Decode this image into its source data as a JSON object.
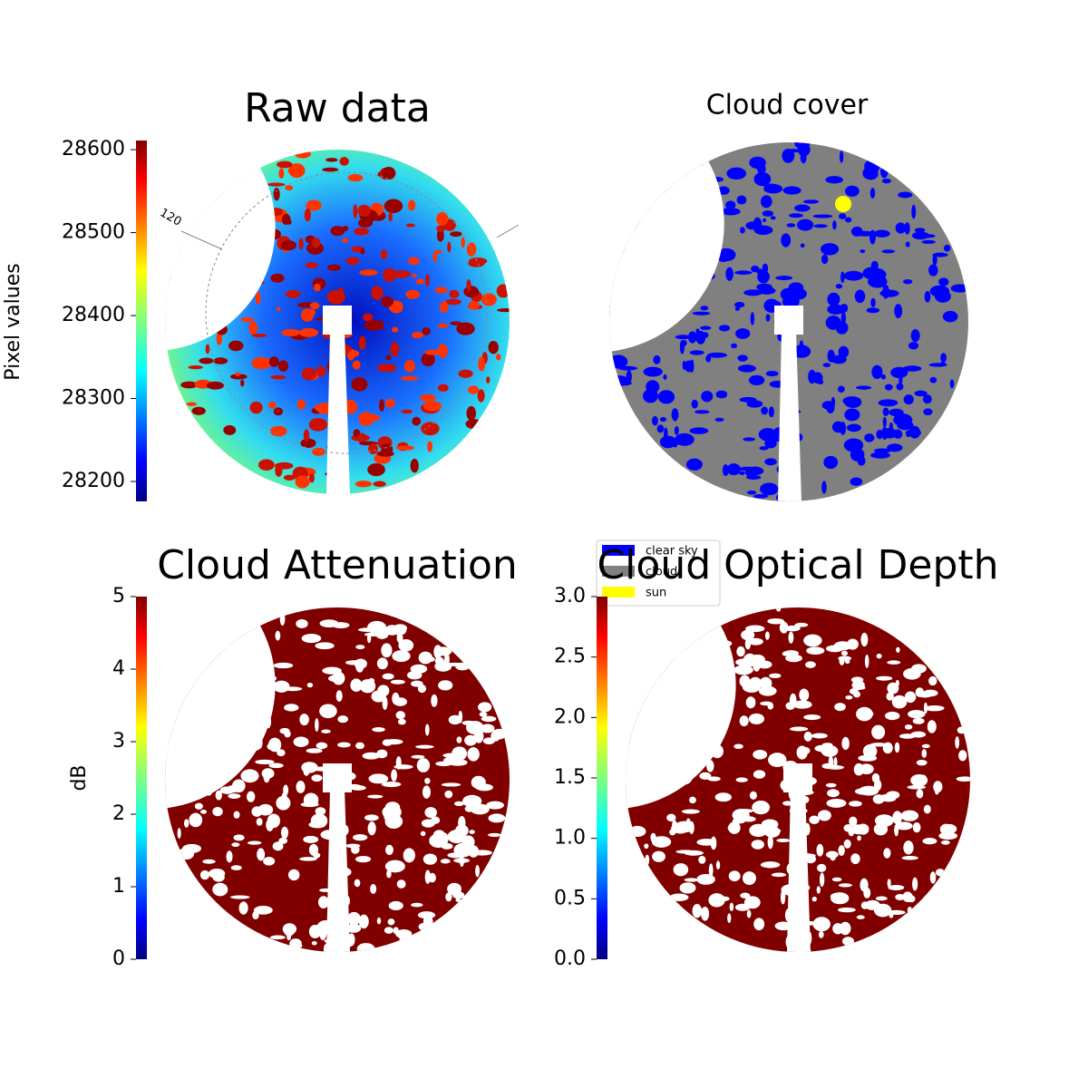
{
  "chart_data": [
    {
      "type": "image",
      "title": "Raw data",
      "colorbar_label": "Pixel values",
      "colormap": "jet",
      "ylim": [
        28176,
        28611
      ],
      "yticks": [
        28200,
        28300,
        28400,
        28500,
        28600
      ],
      "polar_label": "120"
    },
    {
      "type": "image",
      "title": "Cloud cover",
      "series": [
        {
          "name": "clear sky",
          "color": "#0000ff"
        },
        {
          "name": "cloud",
          "color": "#808080"
        },
        {
          "name": "sun",
          "color": "#ffff00"
        }
      ]
    },
    {
      "type": "image",
      "title": "Cloud Attenuation",
      "colorbar_label": "dB",
      "colormap": "jet",
      "ylim": [
        0,
        5
      ],
      "yticks": [
        0,
        1,
        2,
        3,
        4,
        5
      ]
    },
    {
      "type": "image",
      "title": "Cloud Optical Depth",
      "colormap": "jet",
      "ylim": [
        0,
        3
      ],
      "yticks": [
        {
          "value": 0,
          "label": "0.0"
        },
        {
          "value": 0.5,
          "label": "0.5"
        },
        {
          "value": 1,
          "label": "1.0"
        },
        {
          "value": 1.5,
          "label": "1.5"
        },
        {
          "value": 2,
          "label": "2.0"
        },
        {
          "value": 2.5,
          "label": "2.5"
        },
        {
          "value": 3,
          "label": "3.0"
        }
      ]
    }
  ]
}
